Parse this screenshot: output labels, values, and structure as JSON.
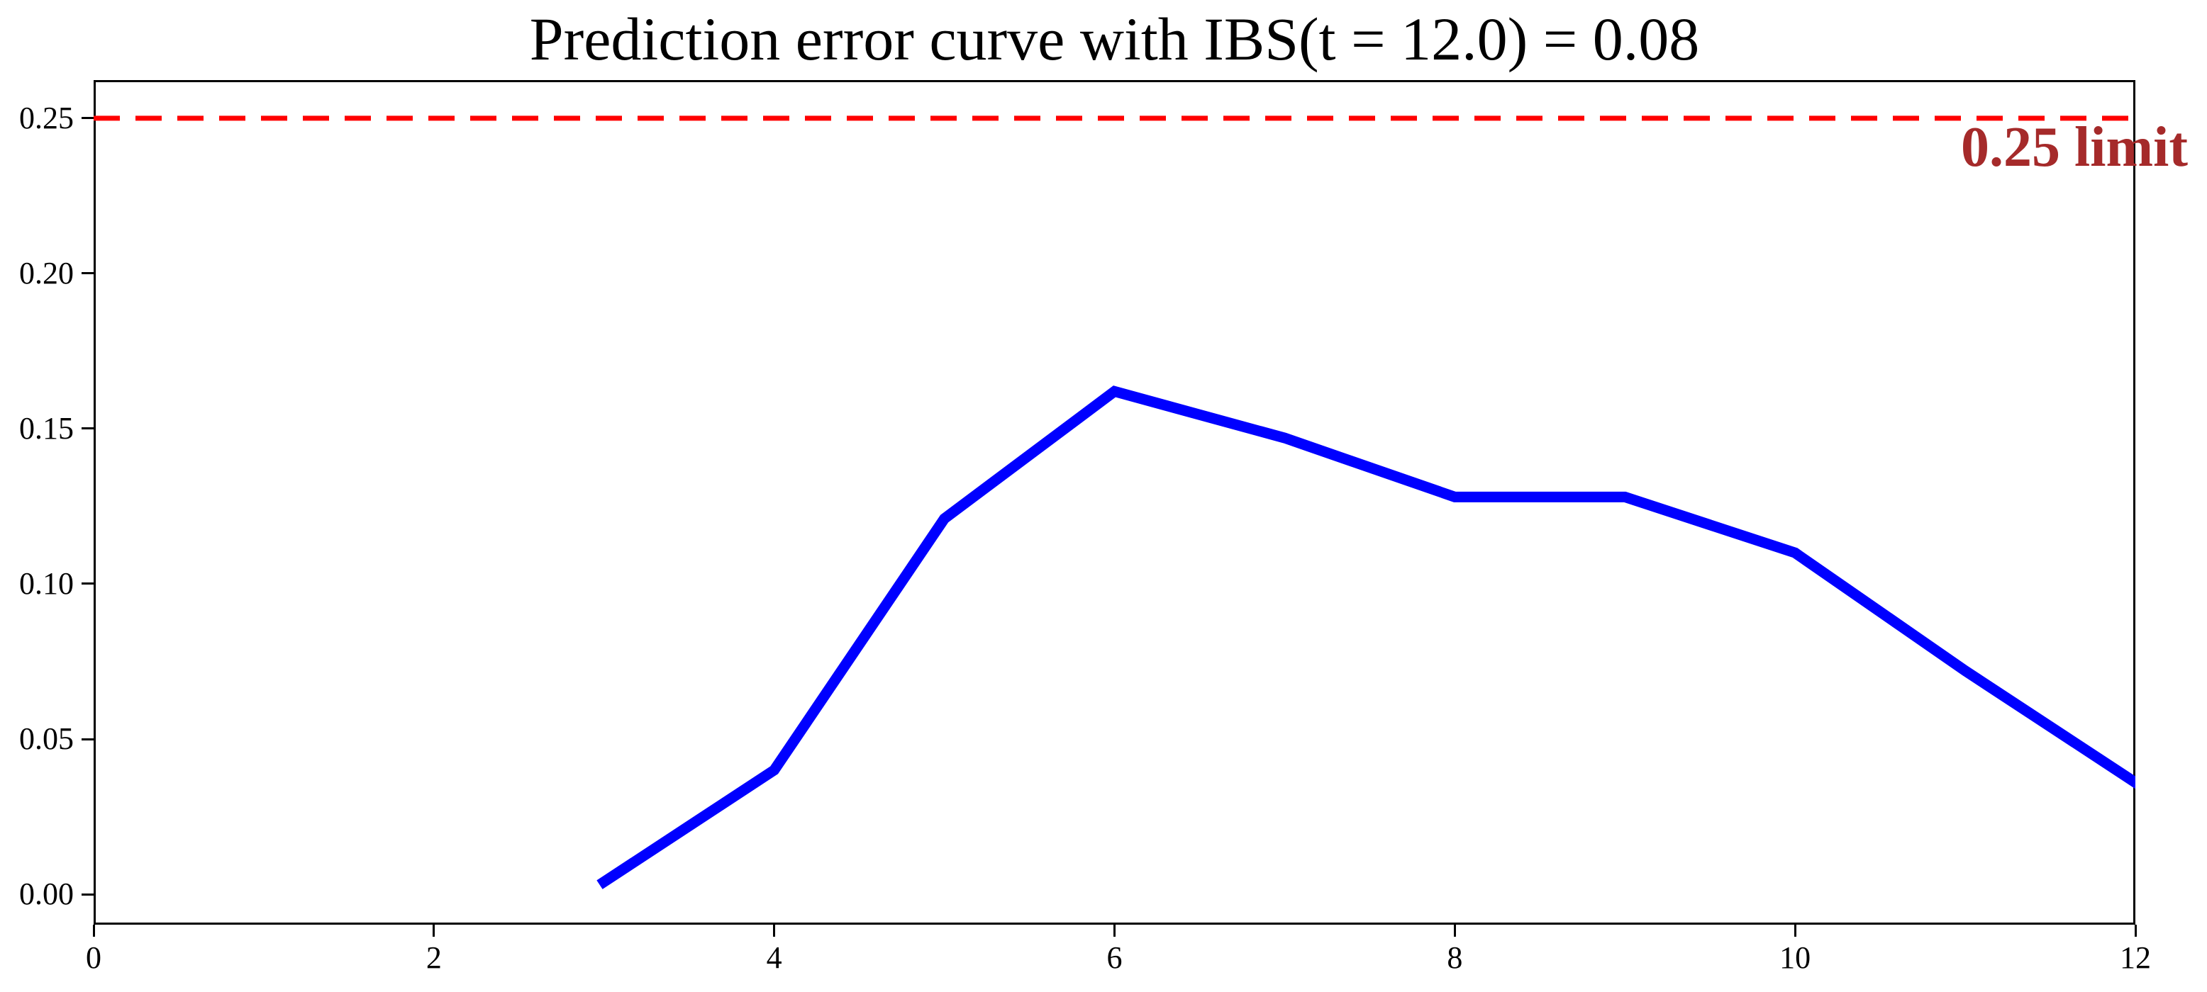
{
  "chart_data": {
    "type": "line",
    "title": "Prediction error curve with IBS(t = 12.0) = 0.08",
    "x": [
      3,
      4,
      5,
      6,
      7,
      8,
      9,
      10,
      11,
      12
    ],
    "y": [
      0.004,
      0.04,
      0.121,
      0.162,
      0.147,
      0.128,
      0.128,
      0.11,
      0.072,
      0.036
    ],
    "series_name": "prediction error",
    "line_color": "#0000ff",
    "xlim": [
      0,
      12
    ],
    "ylim": [
      -0.0098,
      0.2623
    ],
    "x_tick_values": [
      0,
      2,
      4,
      6,
      8,
      10,
      12
    ],
    "x_tick_labels": [
      "0",
      "2",
      "4",
      "6",
      "8",
      "10",
      "12"
    ],
    "y_tick_values": [
      0.0,
      0.05,
      0.1,
      0.15,
      0.2,
      0.25
    ],
    "y_tick_labels": [
      "0.00",
      "0.05",
      "0.10",
      "0.15",
      "0.20",
      "0.25"
    ],
    "xlabel": "",
    "ylabel": "",
    "grid": false,
    "annotation": {
      "limit_value": 0.25,
      "label": "0.25 limit",
      "line_color": "#ff0000",
      "label_color": "#a52a2a",
      "line_style": "dashed"
    }
  }
}
